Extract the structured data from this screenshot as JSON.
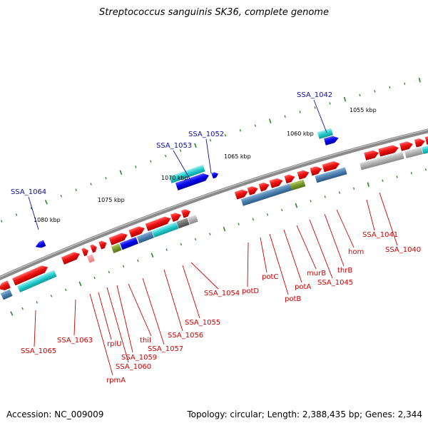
{
  "title": "Streptococcus sanguinis SK36, complete genome",
  "footer": {
    "accession": "Accession: NC_009009",
    "summary": "Topology: circular; Length: 2,388,435 bp; Genes: 2,344"
  },
  "colors": {
    "forward_cds": "#ee1111",
    "reverse_cds": "#0000ee",
    "teal_feature": "#22cccc",
    "steelblue_feature": "#4a7fb0",
    "gray_feature": "#9a9a9a",
    "olive_feature": "#7a9a2a",
    "tick_green": "#228822",
    "backbone": "#808080"
  },
  "ticks": [
    {
      "label": "1080 kbp"
    },
    {
      "label": "1075 kbp"
    },
    {
      "label": "1070 kbp"
    },
    {
      "label": "1065 kbp"
    },
    {
      "label": "1060 kbp"
    },
    {
      "label": "1055 kbp"
    }
  ],
  "top_labels": [
    {
      "text": "SSA_1064"
    },
    {
      "text": "SSA_1053"
    },
    {
      "text": "SSA_1052"
    },
    {
      "text": "SSA_1042"
    }
  ],
  "bottom_labels": [
    {
      "text": "SSA_1065"
    },
    {
      "text": "SSA_1063"
    },
    {
      "text": "rplU"
    },
    {
      "text": "rpmA"
    },
    {
      "text": "SSA_1060"
    },
    {
      "text": "SSA_1059"
    },
    {
      "text": "thiI"
    },
    {
      "text": "SSA_1057"
    },
    {
      "text": "SSA_1056"
    },
    {
      "text": "SSA_1055"
    },
    {
      "text": "SSA_1054"
    },
    {
      "text": "potD"
    },
    {
      "text": "potC"
    },
    {
      "text": "potB"
    },
    {
      "text": "potA"
    },
    {
      "text": "murB"
    },
    {
      "text": "SSA_1045"
    },
    {
      "text": "thrB"
    },
    {
      "text": "hom"
    },
    {
      "text": "SSA_1041"
    },
    {
      "text": "SSA_1040"
    }
  ]
}
